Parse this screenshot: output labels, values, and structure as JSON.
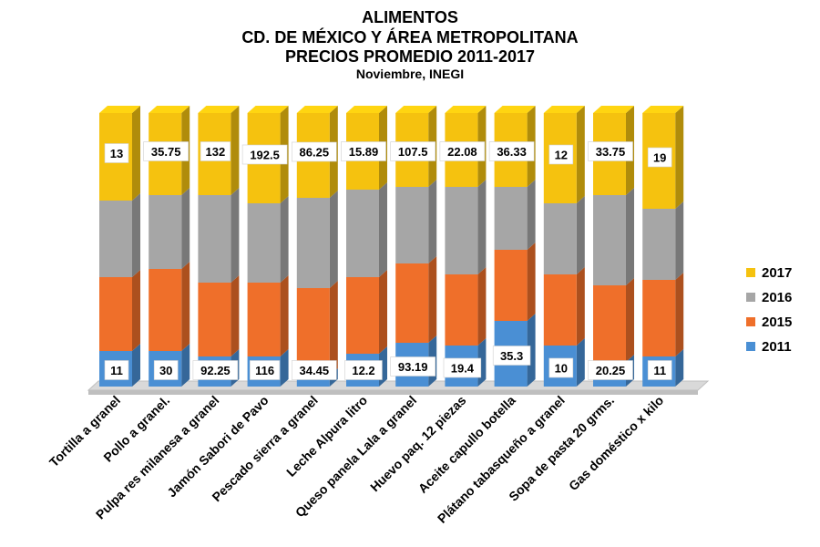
{
  "chart_data": {
    "type": "bar",
    "stacked": "100-percent",
    "three_d": true,
    "title": "ALIMENTOS",
    "subtitle_lines": [
      "CD. DE MÉXICO Y ÁREA METROPOLITANA",
      "PRECIOS PROMEDIO 2011-2017"
    ],
    "source_line": "Noviembre, INEGI",
    "xlabel": "",
    "ylabel": "",
    "grid": false,
    "legend_position": "right",
    "categories": [
      "Tortilla a granel",
      "Pollo a granel.",
      "Pulpa res milanesa a granel",
      "Jamón Sabori de Pavo",
      "Pescado sierra a granel",
      "Leche Alpura litro",
      "Queso panela Lala a granel",
      "Huevo paq. 12 piezas",
      "Aceite capullo botella",
      "Plátano tabasqueño a granel",
      "Sopa de pasta 20 grms.",
      "Gas doméstico x kilo"
    ],
    "series": [
      {
        "name": "2011",
        "color": "#4a8fd4",
        "labels_shown": true,
        "share_pct": [
          13,
          13,
          11,
          11,
          4,
          12,
          16,
          15,
          24,
          15,
          9,
          11
        ]
      },
      {
        "name": "2015",
        "color": "#ef6f2a",
        "labels_shown": false,
        "share_pct": [
          27,
          30,
          27,
          27,
          32,
          28,
          29,
          26,
          26,
          26,
          28,
          28
        ]
      },
      {
        "name": "2016",
        "color": "#a6a6a6",
        "labels_shown": false,
        "share_pct": [
          28,
          27,
          32,
          29,
          33,
          32,
          28,
          32,
          23,
          26,
          33,
          26
        ]
      },
      {
        "name": "2017",
        "color": "#f5c20f",
        "labels_shown": true,
        "share_pct": [
          32,
          30,
          30,
          33,
          31,
          28,
          27,
          27,
          27,
          33,
          30,
          35
        ]
      }
    ],
    "data_labels": {
      "2011": [
        "11",
        "30",
        "92.25",
        "116",
        "34.45",
        "12.2",
        "93.19",
        "19.4",
        "35.3",
        "10",
        "20.25",
        "11"
      ],
      "2017": [
        "13",
        "35.75",
        "132",
        "192.5",
        "86.25",
        "15.89",
        "107.5",
        "22.08",
        "36.33",
        "12",
        "33.75",
        "19"
      ]
    },
    "legend_order": [
      "2017",
      "2016",
      "2015",
      "2011"
    ]
  }
}
